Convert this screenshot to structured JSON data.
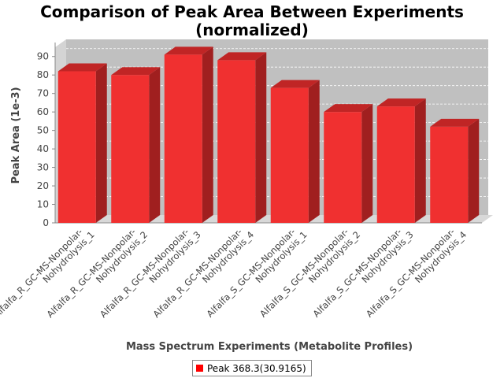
{
  "chart_data": {
    "type": "bar",
    "title_line1": "Comparison of Peak Area Between Experiments",
    "title_line2": "(normalized)",
    "xlabel": "Mass Spectrum Experiments (Metabolite Profiles)",
    "ylabel": "Peak Area (1e-3)",
    "ylim": [
      0,
      95
    ],
    "yticks": [
      0,
      10,
      20,
      30,
      40,
      50,
      60,
      70,
      80,
      90
    ],
    "categories": [
      [
        "Alfalfa_R_GC-MS-Nonpolar-",
        "Nohydrolysis_1"
      ],
      [
        "Alfalfa_R_GC-MS-Nonpolar-",
        "Nohydrolysis_2"
      ],
      [
        "Alfalfa_R_GC-MS-Nonpolar-",
        "Nohydrolysis_3"
      ],
      [
        "Alfalfa_R_GC-MS-Nonpolar-",
        "Nohydrolysis_4"
      ],
      [
        "Alfalfa_S_GC-MS-Nonpolar-",
        "Nohydrolysis_1"
      ],
      [
        "Alfalfa_S_GC-MS-Nonpolar-",
        "Nohydrolysis_2"
      ],
      [
        "Alfalfa_S_GC-MS-Nonpolar-",
        "Nohydrolysis_3"
      ],
      [
        "Alfalfa_S_GC-MS-Nonpolar-",
        "Nohydrolysis_4"
      ]
    ],
    "series": [
      {
        "name": "Peak 368.3(30.9165)",
        "values": [
          82,
          80,
          91,
          88,
          73,
          60,
          63,
          52
        ]
      }
    ],
    "grid": true,
    "legend_position": "bottom",
    "colors": {
      "bar_front": "#f03030",
      "bar_top": "#c02525",
      "bar_side": "#a01f1f",
      "plot_bg": "#c0c0c0",
      "legend_swatch": "#ff0000"
    }
  }
}
